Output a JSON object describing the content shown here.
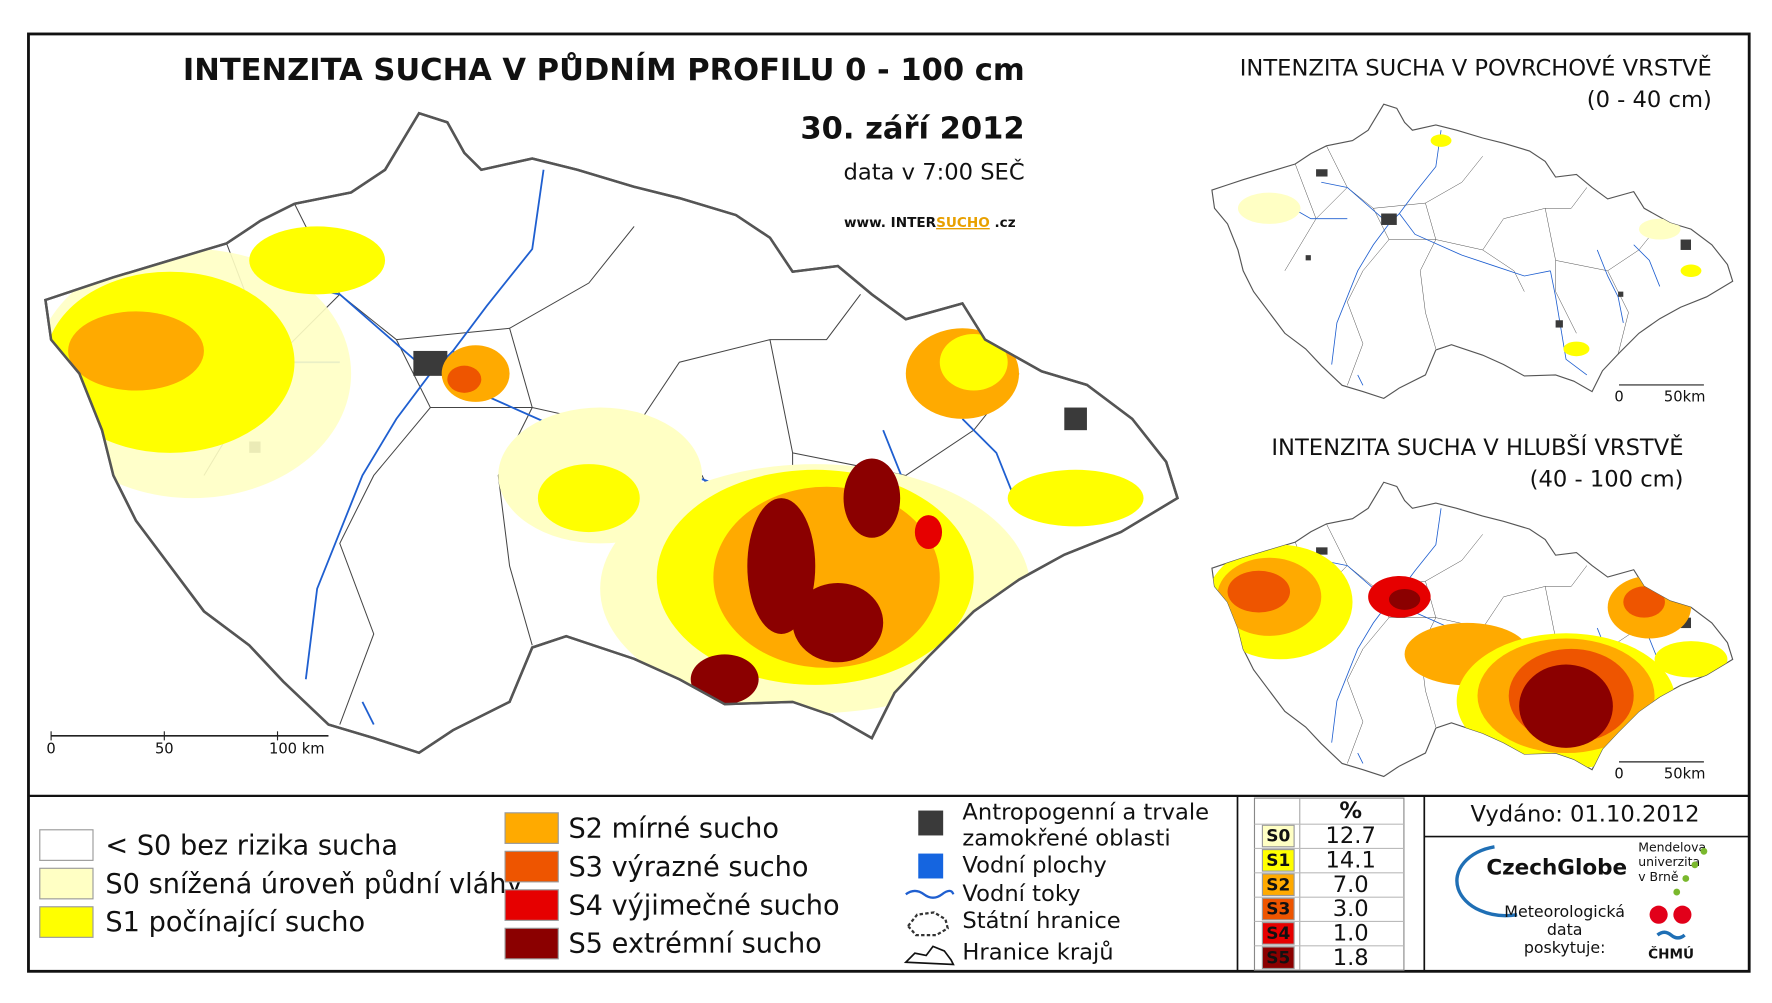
{
  "main_map": {
    "title": "INTENZITA SUCHA V PŮDNÍM PROFILU 0 - 100 cm",
    "date": "30. září 2012",
    "time": "data v 7:00 SEČ",
    "website": {
      "prefix": "www. INTER",
      "highlight": "SUCHO",
      "suffix": " .cz"
    },
    "scale": [
      "0",
      "50",
      "100 km"
    ]
  },
  "surface_map": {
    "title": "INTENZITA SUCHA V POVRCHOVÉ VRSTVĚ",
    "subtitle": "(0 - 40 cm)",
    "scale": [
      "0",
      "50km"
    ]
  },
  "deep_map": {
    "title": "INTENZITA SUCHA V HLUBŠÍ VRSTVĚ",
    "subtitle": "(40 - 100 cm)",
    "scale": [
      "0",
      "50km"
    ]
  },
  "legend": {
    "classes": [
      {
        "label": "< S0 bez rizika sucha",
        "color": "#ffffff"
      },
      {
        "label": "S0 snížená úroveň půdní vláhy",
        "color": "#ffffc4"
      },
      {
        "label": "S1 počínající sucho",
        "color": "#ffff00"
      },
      {
        "label": "S2 mírné sucho",
        "color": "#ffaa00"
      },
      {
        "label": "S3 výrazné sucho",
        "color": "#ee5500"
      },
      {
        "label": "S4 výjimečné sucho",
        "color": "#e60000"
      },
      {
        "label": "S5 extrémní sucho",
        "color": "#8b0000"
      }
    ],
    "features": [
      "Antropogenní a trvale",
      "zamokřené oblasti",
      "Vodní plochy",
      "Vodní toky",
      "Státní hranice",
      "Hranice krajů"
    ]
  },
  "table": {
    "header": "%",
    "rows": [
      {
        "code": "S0",
        "value": "12.7"
      },
      {
        "code": "S1",
        "value": "14.1"
      },
      {
        "code": "S2",
        "value": "7.0"
      },
      {
        "code": "S3",
        "value": "3.0"
      },
      {
        "code": "S4",
        "value": "1.0"
      },
      {
        "code": "S5",
        "value": "1.8"
      }
    ]
  },
  "issued": "Vydáno: 01.10.2012",
  "logos": {
    "czechglobe": "CzechGlobe",
    "mendel": [
      "Mendelova",
      "univerzita",
      "v Brně"
    ],
    "provider": [
      "Meteorologická",
      "data",
      "poskytuje:"
    ],
    "chmu": "ČHMÚ"
  }
}
